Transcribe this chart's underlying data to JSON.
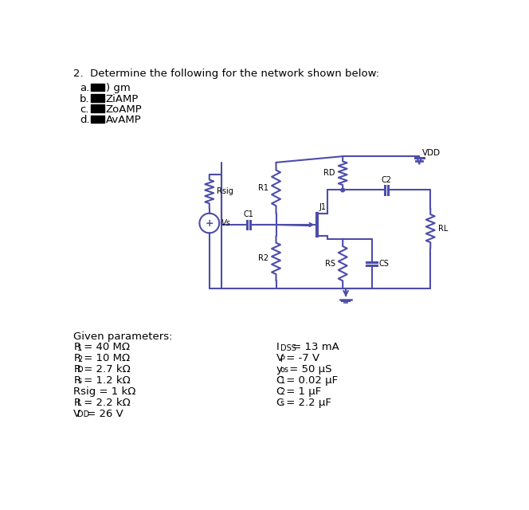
{
  "title": "2.  Determine the following for the network shown below:",
  "items_prefix": [
    "a.",
    "b.",
    "c.",
    "d."
  ],
  "items_text": [
    ") gm",
    "ZiAMP",
    "ZoAMP",
    "AvAMP"
  ],
  "given_title": "Given parameters:",
  "circuit_color": "#4d4daa",
  "text_color": "#000000",
  "bg_color": "#ffffff",
  "params_left": [
    [
      "R",
      "1",
      " = 40 MΩ"
    ],
    [
      "R",
      "2",
      " = 10 MΩ"
    ],
    [
      "R",
      "D",
      " = 2.7 kΩ"
    ],
    [
      "R",
      "s",
      " = 1.2 kΩ"
    ],
    [
      "Rsig = 1 kΩ",
      "",
      ""
    ],
    [
      "R",
      "L",
      " = 2.2 kΩ"
    ],
    [
      "V",
      "DD",
      " = 26 V"
    ]
  ],
  "params_right": [
    [
      "I",
      "DSS",
      " = 13 mA"
    ],
    [
      "V",
      "P",
      " = -7 V"
    ],
    [
      "y",
      "os",
      " = 50 μS"
    ],
    [
      "C",
      "1",
      " = 0.02 μF"
    ],
    [
      "C",
      "2",
      " = 1 μF"
    ],
    [
      "C",
      "s",
      " = 2.2 μF"
    ]
  ]
}
